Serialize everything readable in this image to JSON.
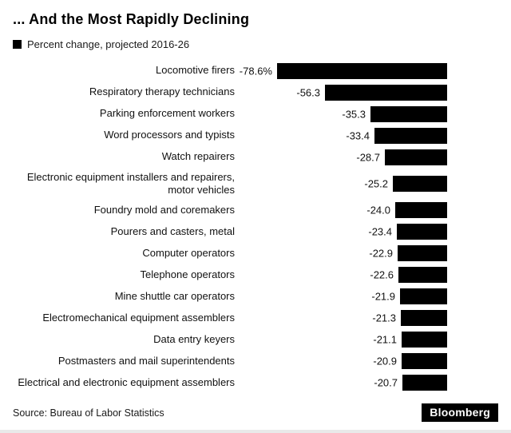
{
  "chart_data": {
    "type": "bar",
    "orientation": "horizontal",
    "title": "... And the Most Rapidly Declining",
    "legend_label": "Percent change, projected 2016-26",
    "legend_position": "top-left",
    "grid": false,
    "axis_visible": false,
    "xlim": [
      -80,
      0
    ],
    "bar_color": "#000000",
    "categories": [
      "Locomotive firers",
      "Respiratory therapy technicians",
      "Parking enforcement workers",
      "Word processors and typists",
      "Watch repairers",
      "Electronic equipment installers and repairers, motor vehicles",
      "Foundry mold and coremakers",
      "Pourers and casters, metal",
      "Computer operators",
      "Telephone operators",
      "Mine shuttle car operators",
      "Electromechanical equipment assemblers",
      "Data entry keyers",
      "Postmasters and mail superintendents",
      "Electrical and electronic equipment assemblers"
    ],
    "values": [
      -78.6,
      -56.3,
      -35.3,
      -33.4,
      -28.7,
      -25.2,
      -24.0,
      -23.4,
      -22.9,
      -22.6,
      -21.9,
      -21.3,
      -21.1,
      -20.9,
      -20.7
    ],
    "value_labels": [
      "-78.6%",
      "-56.3",
      "-35.3",
      "-33.4",
      "-28.7",
      "-25.2",
      "-24.0",
      "-23.4",
      "-22.9",
      "-22.6",
      "-21.9",
      "-21.3",
      "-21.1",
      "-20.9",
      "-20.7"
    ]
  },
  "footer": {
    "source": "Source: Bureau of Labor Statistics",
    "brand": "Bloomberg"
  }
}
